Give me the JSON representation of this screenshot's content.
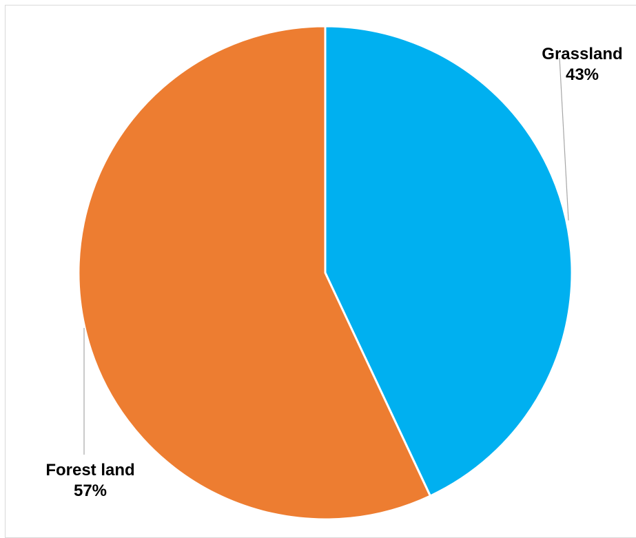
{
  "chart_data": {
    "type": "pie",
    "title": "",
    "slices": [
      {
        "name": "Grassland",
        "value": 43,
        "label": "43%",
        "color": "#00b0f0"
      },
      {
        "name": "Forest land",
        "value": 57,
        "label": "57%",
        "color": "#ed7d31"
      }
    ],
    "start_angle": "12 o'clock",
    "direction": "clockwise",
    "slice_separator_color": "#ffffff",
    "legend": "none",
    "data_labels": "outside with leader lines"
  }
}
